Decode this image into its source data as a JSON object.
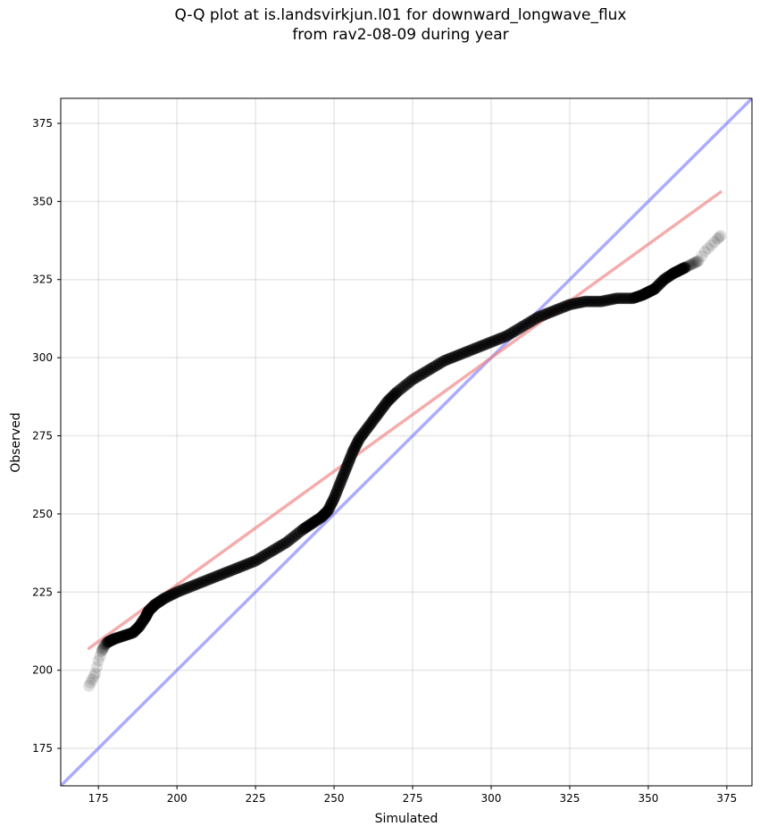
{
  "chart_data": {
    "type": "scatter",
    "title_line1": "Q-Q plot at is.landsvirkjun.l01 for downward_longwave_flux",
    "title_line2": "from rav2-08-09 during year",
    "xlabel": "Simulated",
    "ylabel": "Observed",
    "xlim": [
      163,
      383
    ],
    "ylim": [
      163,
      383
    ],
    "xticks": [
      175,
      200,
      225,
      250,
      275,
      300,
      325,
      350,
      375
    ],
    "yticks": [
      175,
      200,
      225,
      250,
      275,
      300,
      325,
      350,
      375
    ],
    "grid": true,
    "one_to_one_line": {
      "x": [
        163,
        383
      ],
      "y": [
        163,
        383
      ],
      "color": "#7f7fff"
    },
    "fit_line": {
      "x": [
        172,
        373
      ],
      "y": [
        207,
        353
      ],
      "color": "#f08080"
    },
    "marker_color": "#000000",
    "quantiles": {
      "x": [
        172,
        173,
        174,
        175,
        176,
        177,
        178,
        180,
        183,
        186,
        188,
        190,
        191,
        193,
        196,
        200,
        205,
        210,
        215,
        220,
        225,
        230,
        235,
        240,
        243,
        246,
        248,
        250,
        252,
        254,
        256,
        258,
        261,
        264,
        267,
        270,
        275,
        280,
        285,
        290,
        295,
        300,
        305,
        310,
        315,
        320,
        325,
        330,
        335,
        340,
        345,
        348,
        350,
        352,
        355,
        358,
        360,
        362,
        364,
        366,
        368,
        370,
        372,
        373
      ],
      "y": [
        195,
        197,
        199,
        203,
        206,
        208,
        209,
        210,
        211,
        212,
        214,
        217,
        219,
        221,
        223,
        225,
        227,
        229,
        231,
        233,
        235,
        238,
        241,
        245,
        247,
        249,
        251,
        255,
        260,
        265,
        270,
        274,
        278,
        282,
        286,
        289,
        293,
        296,
        299,
        301,
        303,
        305,
        307,
        310,
        313,
        315,
        317,
        318,
        318,
        319,
        319,
        320,
        321,
        322,
        325,
        327,
        328,
        329,
        330,
        331,
        334,
        336,
        338,
        339
      ]
    }
  }
}
